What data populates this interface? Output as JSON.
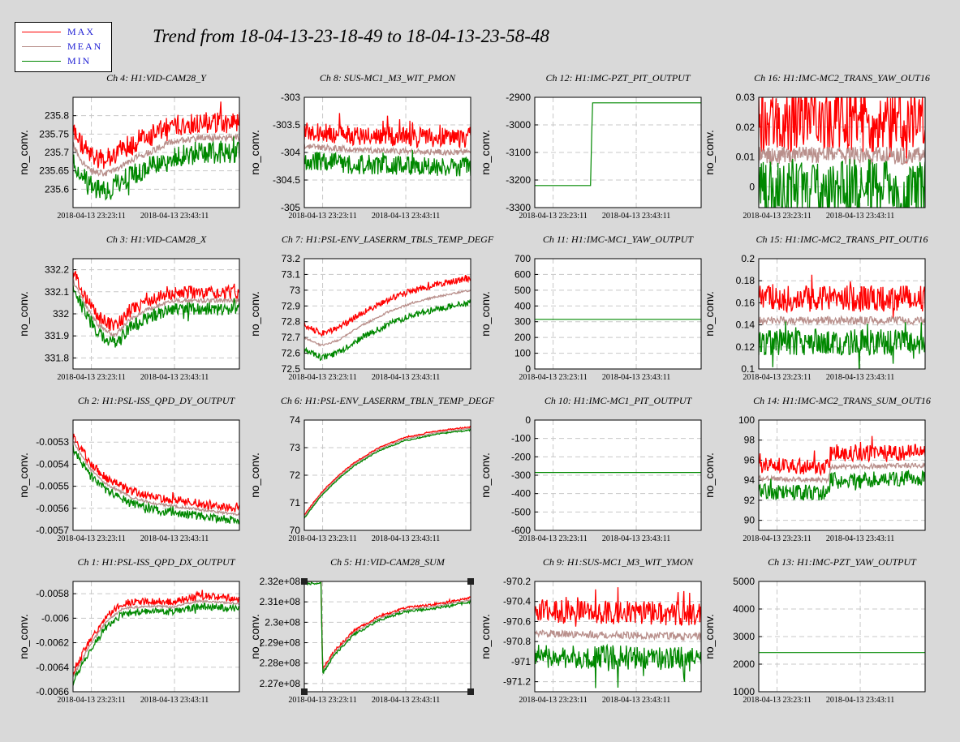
{
  "title": "Trend from 18-04-13-23-18-49 to 18-04-13-23-58-48",
  "legend": [
    {
      "label": "MAX",
      "color": "#ff0000"
    },
    {
      "label": "MEAN",
      "color": "#b9908c"
    },
    {
      "label": "MIN",
      "color": "#008800"
    }
  ],
  "colors": {
    "max": "#ff0000",
    "mean": "#b9908c",
    "min": "#008800",
    "plot_bg": "#ffffff",
    "grid": "#c8c8c8"
  },
  "x_tick_labels": [
    "2018-04-13 23:23:11",
    "2018-04-13 23:43:11"
  ],
  "chart_data": [
    {
      "id": "ch4",
      "type": "line",
      "title": "Ch 4: H1:VID-CAM28_Y",
      "ylabel": "no_conv.",
      "ylim": [
        235.55,
        235.85
      ],
      "yticks": [
        {
          "v": 235.6,
          "label": "235.6"
        },
        {
          "v": 235.65,
          "label": "235.65"
        },
        {
          "v": 235.7,
          "label": "235.7"
        },
        {
          "v": 235.75,
          "label": "235.75"
        },
        {
          "v": 235.8,
          "label": "235.8"
        }
      ],
      "trend": [
        [
          0,
          235.72
        ],
        [
          0.05,
          235.68
        ],
        [
          0.1,
          235.65
        ],
        [
          0.2,
          235.64
        ],
        [
          0.35,
          235.68
        ],
        [
          0.5,
          235.71
        ],
        [
          0.6,
          235.73
        ],
        [
          0.75,
          235.74
        ],
        [
          1,
          235.74
        ]
      ],
      "spread": 0.06,
      "noise": 0.03
    },
    {
      "id": "ch8",
      "type": "line",
      "title": "Ch 8: SUS-MC1_M3_WIT_PMON",
      "ylabel": "no_conv.",
      "ylim": [
        -305,
        -303
      ],
      "yticks": [
        {
          "v": -305,
          "label": "-305"
        },
        {
          "v": -304.5,
          "label": "-304.5"
        },
        {
          "v": -304,
          "label": "-304"
        },
        {
          "v": -303.5,
          "label": "-303.5"
        },
        {
          "v": -303,
          "label": "-303"
        }
      ],
      "trend": [
        [
          0,
          -303.88
        ],
        [
          0.3,
          -303.95
        ],
        [
          0.6,
          -303.98
        ],
        [
          1,
          -304.0
        ]
      ],
      "spread": 0.38,
      "noise": 0.18
    },
    {
      "id": "ch12",
      "type": "step",
      "title": "Ch 12: H1:IMC-PZT_PIT_OUTPUT",
      "ylabel": "no_conv.",
      "ylim": [
        -3300,
        -2900
      ],
      "yticks": [
        {
          "v": -3300,
          "label": "-3300"
        },
        {
          "v": -3200,
          "label": "-3200"
        },
        {
          "v": -3100,
          "label": "-3100"
        },
        {
          "v": -3000,
          "label": "-3000"
        },
        {
          "v": -2900,
          "label": "-2900"
        }
      ],
      "trend": [
        [
          0,
          -3220
        ],
        [
          0.335,
          -3220
        ],
        [
          0.342,
          -3040
        ],
        [
          0.348,
          -2920
        ],
        [
          1,
          -2920
        ]
      ],
      "spread": 0,
      "noise": 0
    },
    {
      "id": "ch16",
      "type": "line",
      "title": "Ch 16: H1:IMC-MC2_TRANS_YAW_OUT16",
      "ylabel": "no_conv.",
      "ylim": [
        -0.007,
        0.03
      ],
      "yticks": [
        {
          "v": 0,
          "label": "0"
        },
        {
          "v": 0.01,
          "label": "0.01"
        },
        {
          "v": 0.02,
          "label": "0.02"
        },
        {
          "v": 0.03,
          "label": "0.03"
        }
      ],
      "trend": [
        [
          0,
          0.0105
        ],
        [
          1,
          0.0105
        ]
      ],
      "spread": 0.014,
      "noise": 0.01
    },
    {
      "id": "ch3",
      "type": "line",
      "title": "Ch 3: H1:VID-CAM28_X",
      "ylabel": "no_conv.",
      "ylim": [
        331.75,
        332.25
      ],
      "yticks": [
        {
          "v": 331.8,
          "label": "331.8"
        },
        {
          "v": 331.9,
          "label": "331.9"
        },
        {
          "v": 332,
          "label": "332"
        },
        {
          "v": 332.1,
          "label": "332.1"
        },
        {
          "v": 332.2,
          "label": "332.2"
        }
      ],
      "trend": [
        [
          0,
          332.15
        ],
        [
          0.08,
          332.03
        ],
        [
          0.15,
          331.95
        ],
        [
          0.25,
          331.9
        ],
        [
          0.35,
          331.98
        ],
        [
          0.45,
          332.02
        ],
        [
          0.6,
          332.06
        ],
        [
          0.8,
          332.06
        ],
        [
          1,
          332.06
        ]
      ],
      "spread": 0.05,
      "noise": 0.03
    },
    {
      "id": "ch7",
      "type": "line",
      "title": "Ch 7: H1:PSL-ENV_LASERRM_TBLS_TEMP_DEGF",
      "ylabel": "no_conv.",
      "ylim": [
        72.5,
        73.2
      ],
      "yticks": [
        {
          "v": 72.5,
          "label": "72.5"
        },
        {
          "v": 72.6,
          "label": "72.6"
        },
        {
          "v": 72.7,
          "label": "72.7"
        },
        {
          "v": 72.8,
          "label": "72.8"
        },
        {
          "v": 72.9,
          "label": "72.9"
        },
        {
          "v": 73,
          "label": "73"
        },
        {
          "v": 73.1,
          "label": "73.1"
        },
        {
          "v": 73.2,
          "label": "73.2"
        }
      ],
      "trend": [
        [
          0,
          72.7
        ],
        [
          0.1,
          72.65
        ],
        [
          0.2,
          72.68
        ],
        [
          0.35,
          72.78
        ],
        [
          0.5,
          72.86
        ],
        [
          0.65,
          72.92
        ],
        [
          0.8,
          72.96
        ],
        [
          1,
          73.0
        ]
      ],
      "spread": 0.14,
      "noise": 0.02
    },
    {
      "id": "ch11",
      "type": "step",
      "title": "Ch 11: H1:IMC-MC1_YAW_OUTPUT",
      "ylabel": "no_conv.",
      "ylim": [
        0,
        700
      ],
      "yticks": [
        {
          "v": 0,
          "label": "0"
        },
        {
          "v": 100,
          "label": "100"
        },
        {
          "v": 200,
          "label": "200"
        },
        {
          "v": 300,
          "label": "300"
        },
        {
          "v": 400,
          "label": "400"
        },
        {
          "v": 500,
          "label": "500"
        },
        {
          "v": 600,
          "label": "600"
        },
        {
          "v": 700,
          "label": "700"
        }
      ],
      "trend": [
        [
          0,
          315
        ],
        [
          1,
          315
        ]
      ],
      "spread": 0,
      "noise": 0
    },
    {
      "id": "ch15",
      "type": "line",
      "title": "Ch 15: H1:IMC-MC2_TRANS_PIT_OUT16",
      "ylabel": "no_conv.",
      "ylim": [
        0.1,
        0.2
      ],
      "yticks": [
        {
          "v": 0.1,
          "label": "0.1"
        },
        {
          "v": 0.12,
          "label": "0.12"
        },
        {
          "v": 0.14,
          "label": "0.14"
        },
        {
          "v": 0.16,
          "label": "0.16"
        },
        {
          "v": 0.18,
          "label": "0.18"
        },
        {
          "v": 0.2,
          "label": "0.2"
        }
      ],
      "trend": [
        [
          0,
          0.144
        ],
        [
          1,
          0.144
        ]
      ],
      "spread": 0.03,
      "noise": 0.012
    },
    {
      "id": "ch2",
      "type": "line",
      "title": "Ch 2: H1:PSL-ISS_QPD_DY_OUTPUT",
      "ylabel": "no_conv.",
      "ylim": [
        -0.0057,
        -0.0052
      ],
      "yticks": [
        {
          "v": -0.0057,
          "label": "-0.0057"
        },
        {
          "v": -0.0056,
          "label": "-0.0056"
        },
        {
          "v": -0.0055,
          "label": "-0.0055"
        },
        {
          "v": -0.0054,
          "label": "-0.0054"
        },
        {
          "v": -0.0053,
          "label": "-0.0053"
        }
      ],
      "trend": [
        [
          0,
          -0.0053
        ],
        [
          0.1,
          -0.00542
        ],
        [
          0.2,
          -0.00549
        ],
        [
          0.35,
          -0.00555
        ],
        [
          0.5,
          -0.00558
        ],
        [
          0.7,
          -0.0056
        ],
        [
          1,
          -0.00563
        ]
      ],
      "spread": 4e-05,
      "noise": 2e-05
    },
    {
      "id": "ch6",
      "type": "line",
      "title": "Ch 6: H1:PSL-ENV_LASERRM_TBLN_TEMP_DEGF",
      "ylabel": "no_conv.",
      "ylim": [
        70,
        74
      ],
      "yticks": [
        {
          "v": 70,
          "label": "70"
        },
        {
          "v": 71,
          "label": "71"
        },
        {
          "v": 72,
          "label": "72"
        },
        {
          "v": 73,
          "label": "73"
        },
        {
          "v": 74,
          "label": "74"
        }
      ],
      "trend": [
        [
          0,
          70.5
        ],
        [
          0.1,
          71.3
        ],
        [
          0.2,
          71.9
        ],
        [
          0.3,
          72.4
        ],
        [
          0.45,
          72.95
        ],
        [
          0.6,
          73.3
        ],
        [
          0.8,
          73.55
        ],
        [
          1,
          73.7
        ]
      ],
      "spread": 0.1,
      "noise": 0.02
    },
    {
      "id": "ch10",
      "type": "step",
      "title": "Ch 10: H1:IMC-MC1_PIT_OUTPUT",
      "ylabel": "no_conv.",
      "ylim": [
        -600,
        0
      ],
      "yticks": [
        {
          "v": -600,
          "label": "-600"
        },
        {
          "v": -500,
          "label": "-500"
        },
        {
          "v": -400,
          "label": "-400"
        },
        {
          "v": -300,
          "label": "-300"
        },
        {
          "v": -200,
          "label": "-200"
        },
        {
          "v": -100,
          "label": "-100"
        },
        {
          "v": 0,
          "label": "0"
        }
      ],
      "trend": [
        [
          0,
          -285
        ],
        [
          1,
          -285
        ]
      ],
      "spread": 0,
      "noise": 0
    },
    {
      "id": "ch14",
      "type": "line",
      "title": "Ch 14: H1:IMC-MC2_TRANS_SUM_OUT16",
      "ylabel": "no_conv.",
      "ylim": [
        89,
        100
      ],
      "yticks": [
        {
          "v": 90,
          "label": "90"
        },
        {
          "v": 92,
          "label": "92"
        },
        {
          "v": 94,
          "label": "94"
        },
        {
          "v": 96,
          "label": "96"
        },
        {
          "v": 98,
          "label": "98"
        },
        {
          "v": 100,
          "label": "100"
        }
      ],
      "trend": [
        [
          0,
          94.2
        ],
        [
          0.42,
          94.0
        ],
        [
          0.43,
          95.3
        ],
        [
          1,
          95.5
        ]
      ],
      "spread": 2.0,
      "noise": 0.8
    },
    {
      "id": "ch1",
      "type": "line",
      "title": "Ch 1: H1:PSL-ISS_QPD_DX_OUTPUT",
      "ylabel": "no_conv.",
      "ylim": [
        -0.0066,
        -0.0057
      ],
      "yticks": [
        {
          "v": -0.0066,
          "label": "-0.0066"
        },
        {
          "v": -0.0064,
          "label": "-0.0064"
        },
        {
          "v": -0.0062,
          "label": "-0.0062"
        },
        {
          "v": -0.006,
          "label": "-0.006"
        },
        {
          "v": -0.0058,
          "label": "-0.0058"
        }
      ],
      "trend": [
        [
          0,
          -0.00648
        ],
        [
          0.05,
          -0.00635
        ],
        [
          0.1,
          -0.00622
        ],
        [
          0.2,
          -0.00603
        ],
        [
          0.3,
          -0.00592
        ],
        [
          0.45,
          -0.0059
        ],
        [
          0.6,
          -0.00591
        ],
        [
          0.75,
          -0.00586
        ],
        [
          1,
          -0.00588
        ]
      ],
      "spread": 6e-05,
      "noise": 3e-05
    },
    {
      "id": "ch5",
      "type": "line",
      "title": "Ch 5: H1:VID-CAM28_SUM",
      "ylabel": "no_conv.",
      "ylim": [
        226600000,
        232000000
      ],
      "yticks": [
        {
          "v": 227000000,
          "label": "2.27e+08"
        },
        {
          "v": 228000000,
          "label": "2.28e+08"
        },
        {
          "v": 229000000,
          "label": "2.29e+08"
        },
        {
          "v": 230000000,
          "label": "2.3e+08"
        },
        {
          "v": 231000000,
          "label": "2.31e+08"
        },
        {
          "v": 232000000,
          "label": "2.32e+08"
        }
      ],
      "trend": [
        [
          0,
          232000000
        ],
        [
          0.1,
          232000000
        ],
        [
          0.11,
          227600000
        ],
        [
          0.18,
          228500000
        ],
        [
          0.3,
          229500000
        ],
        [
          0.45,
          230200000
        ],
        [
          0.6,
          230600000
        ],
        [
          0.8,
          230800000
        ],
        [
          1,
          231100000
        ]
      ],
      "spread": 150000,
      "noise": 60000
    },
    {
      "id": "ch9",
      "type": "line",
      "title": "Ch 9: H1:SUS-MC1_M3_WIT_YMON",
      "ylabel": "no_conv.",
      "ylim": [
        -971.3,
        -970.2
      ],
      "yticks": [
        {
          "v": -971.2,
          "label": "-971.2"
        },
        {
          "v": -971,
          "label": "-971"
        },
        {
          "v": -970.8,
          "label": "-970.8"
        },
        {
          "v": -970.6,
          "label": "-970.6"
        },
        {
          "v": -970.4,
          "label": "-970.4"
        },
        {
          "v": -970.2,
          "label": "-970.2"
        }
      ],
      "trend": [
        [
          0,
          -970.72
        ],
        [
          1,
          -970.75
        ]
      ],
      "spread": 0.35,
      "noise": 0.12
    },
    {
      "id": "ch13",
      "type": "step",
      "title": "Ch 13: H1:IMC-PZT_YAW_OUTPUT",
      "ylabel": "no_conv.",
      "ylim": [
        1000,
        5000
      ],
      "yticks": [
        {
          "v": 1000,
          "label": "1000"
        },
        {
          "v": 2000,
          "label": "2000"
        },
        {
          "v": 3000,
          "label": "3000"
        },
        {
          "v": 4000,
          "label": "4000"
        },
        {
          "v": 5000,
          "label": "5000"
        }
      ],
      "trend": [
        [
          0,
          2420
        ],
        [
          1,
          2420
        ]
      ],
      "spread": 0,
      "noise": 0
    }
  ]
}
